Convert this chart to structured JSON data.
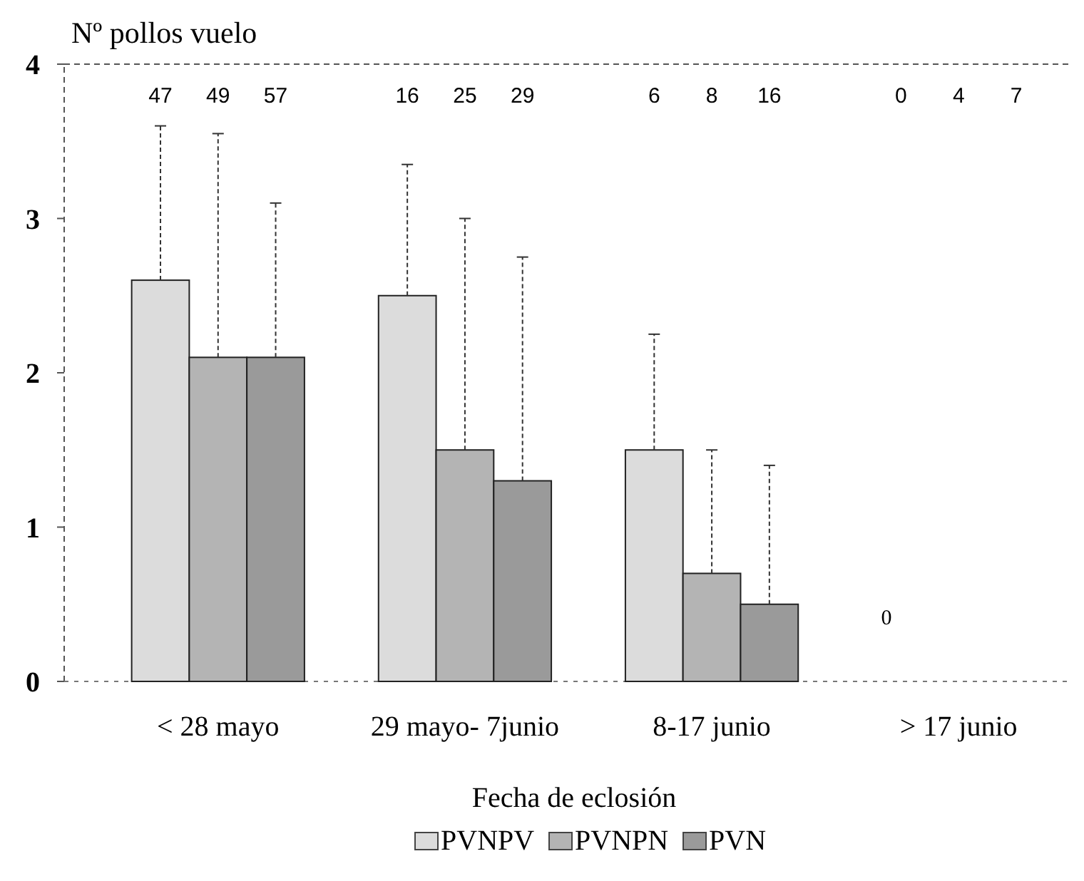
{
  "chart_data": {
    "type": "bar",
    "ylabel": "Nº pollos vuelo",
    "xlabel": "Fecha de eclosión",
    "categories": [
      "< 28 mayo",
      "29 mayo- 7junio",
      "8-17 junio",
      "> 17 junio"
    ],
    "series": [
      {
        "name": "PVNPV",
        "color": "#dcdcdc",
        "values": [
          2.6,
          2.5,
          1.5,
          0
        ],
        "errors": [
          [
            2.6,
            3.6
          ],
          [
            2.5,
            3.35
          ],
          [
            1.5,
            2.25
          ],
          null
        ]
      },
      {
        "name": "PVNPN",
        "color": "#b4b4b4",
        "values": [
          2.1,
          1.5,
          0.7,
          0
        ],
        "errors": [
          [
            2.1,
            3.55
          ],
          [
            1.5,
            3.0
          ],
          [
            0.7,
            1.5
          ],
          null
        ]
      },
      {
        "name": "PVN",
        "color": "#9a9a9a",
        "values": [
          2.1,
          1.3,
          0.5,
          0
        ],
        "errors": [
          [
            2.1,
            3.1
          ],
          [
            1.3,
            2.75
          ],
          [
            0.5,
            1.4
          ],
          null
        ]
      }
    ],
    "annotations": [
      "47",
      "49",
      "57",
      "16",
      "25",
      "29",
      "6",
      "8",
      "16",
      "0",
      "4",
      "7",
      "0"
    ],
    "ylim": [
      0,
      4
    ],
    "yticks": [
      0,
      1,
      2,
      3,
      4
    ],
    "legend": "bottom"
  }
}
